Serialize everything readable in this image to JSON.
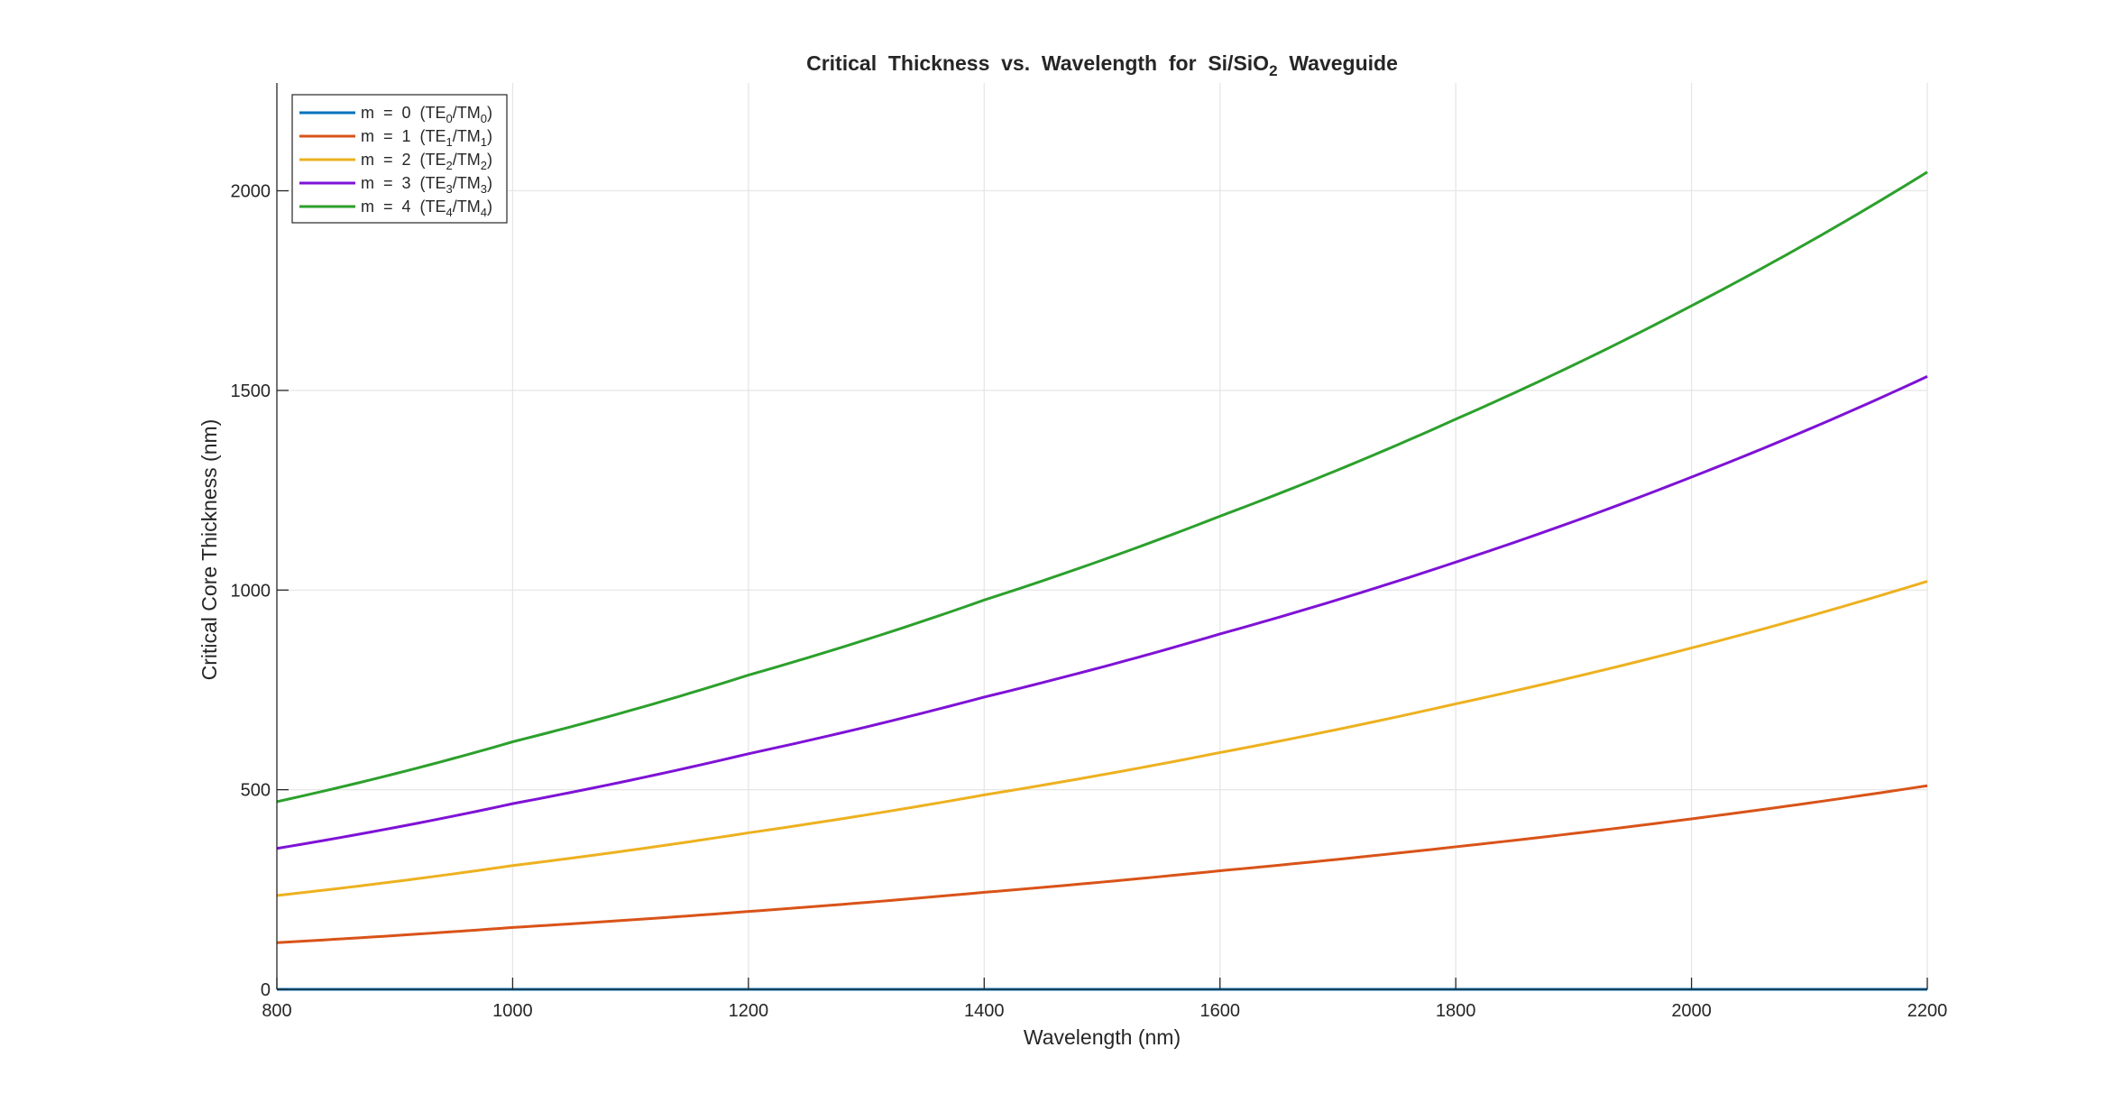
{
  "chart_data": {
    "type": "line",
    "title": "Critical Thickness vs. Wavelength for Si/SiO2 Waveguide",
    "title_parts": [
      {
        "text": "Critical  Thickness  vs.  Wavelength  for  Si/SiO",
        "sub": false
      },
      {
        "text": "2",
        "sub": true
      },
      {
        "text": "  Waveguide",
        "sub": false
      }
    ],
    "xlabel": "Wavelength (nm)",
    "ylabel": "Critical Core Thickness (nm)",
    "xlim": [
      800,
      2200
    ],
    "ylim": [
      0,
      2270
    ],
    "xticks": [
      800,
      1000,
      1200,
      1400,
      1600,
      1800,
      2000,
      2200
    ],
    "yticks": [
      0,
      500,
      1000,
      1500,
      2000
    ],
    "grid": true,
    "legend_position": "top-left",
    "x": [
      800,
      1000,
      1200,
      1400,
      1600,
      1800,
      2000,
      2200
    ],
    "series": [
      {
        "name": "m = 0 (TE0/TM0)",
        "legend_parts": [
          {
            "text": "m  =  0  (TE",
            "sub": false
          },
          {
            "text": "0",
            "sub": true
          },
          {
            "text": "/TM",
            "sub": false
          },
          {
            "text": "0",
            "sub": true
          },
          {
            "text": ")",
            "sub": false
          }
        ],
        "color": "#0072BD",
        "values": [
          0,
          0,
          0,
          0,
          0,
          0,
          0,
          0
        ]
      },
      {
        "name": "m = 1 (TE1/TM1)",
        "legend_parts": [
          {
            "text": "m  =  1  (TE",
            "sub": false
          },
          {
            "text": "1",
            "sub": true
          },
          {
            "text": "/TM",
            "sub": false
          },
          {
            "text": "1",
            "sub": true
          },
          {
            "text": ")",
            "sub": false
          }
        ],
        "color": "#D95319",
        "values": [
          117,
          155,
          195,
          243,
          297,
          357,
          427,
          510
        ]
      },
      {
        "name": "m = 2 (TE2/TM2)",
        "legend_parts": [
          {
            "text": "m  =  2  (TE",
            "sub": false
          },
          {
            "text": "2",
            "sub": true
          },
          {
            "text": "/TM",
            "sub": false
          },
          {
            "text": "2",
            "sub": true
          },
          {
            "text": ")",
            "sub": false
          }
        ],
        "color": "#EDB120",
        "values": [
          235,
          310,
          392,
          487,
          593,
          715,
          855,
          1022
        ]
      },
      {
        "name": "m = 3 (TE3/TM3)",
        "legend_parts": [
          {
            "text": "m  =  3  (TE",
            "sub": false
          },
          {
            "text": "3",
            "sub": true
          },
          {
            "text": "/TM",
            "sub": false
          },
          {
            "text": "3",
            "sub": true
          },
          {
            "text": ")",
            "sub": false
          }
        ],
        "color": "#7E12D6",
        "values": [
          353,
          465,
          590,
          732,
          890,
          1070,
          1283,
          1535
        ]
      },
      {
        "name": "m = 4 (TE4/TM4)",
        "legend_parts": [
          {
            "text": "m  =  4  (TE",
            "sub": false
          },
          {
            "text": "4",
            "sub": true
          },
          {
            "text": "/TM",
            "sub": false
          },
          {
            "text": "4",
            "sub": true
          },
          {
            "text": ")",
            "sub": false
          }
        ],
        "color": "#2CA02C",
        "values": [
          470,
          620,
          787,
          975,
          1185,
          1428,
          1712,
          2047
        ]
      }
    ]
  }
}
